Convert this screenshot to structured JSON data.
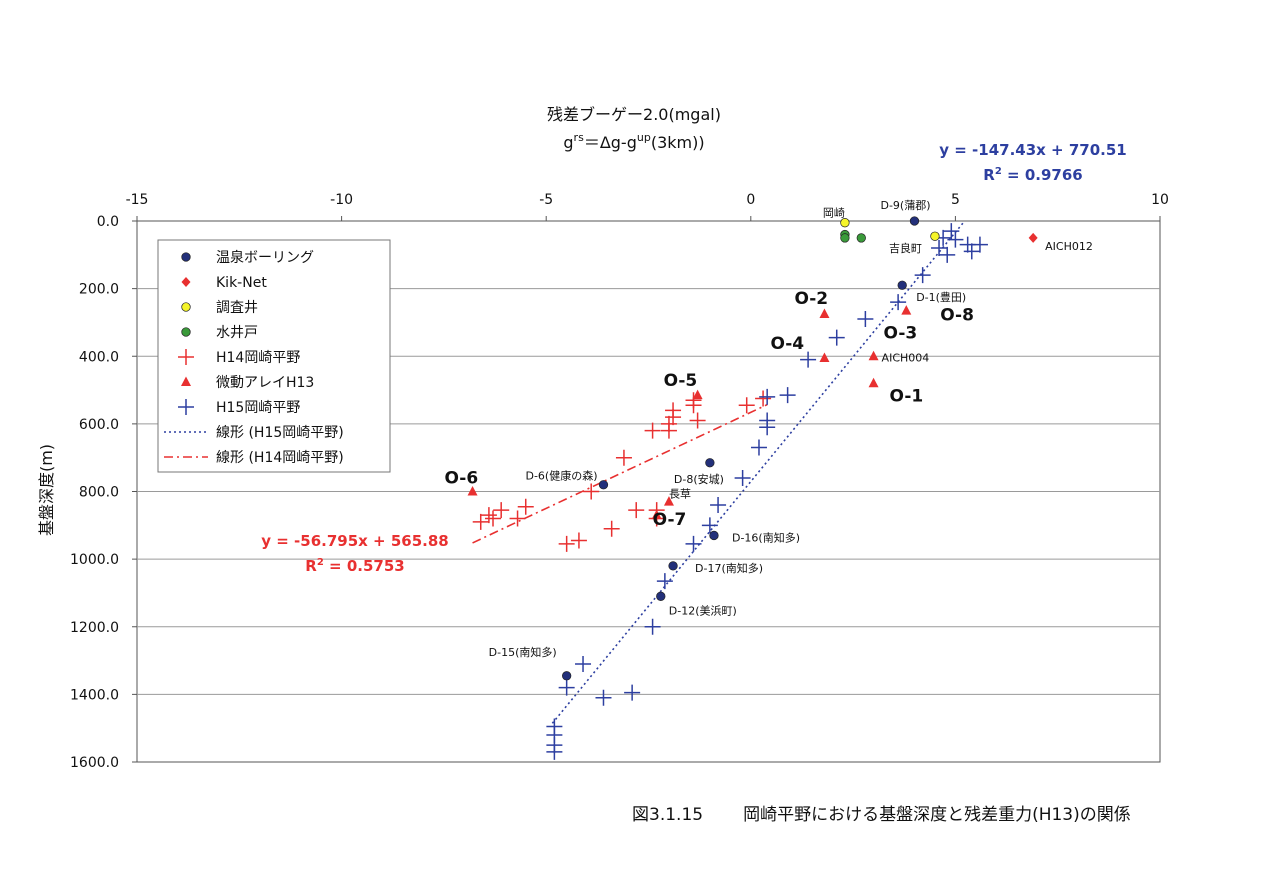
{
  "chart_data": {
    "type": "scatter",
    "title_line1": "残差ブーゲー2.0(mgal)",
    "title_line2_prefix": "g",
    "title_line2_sup1": "rs",
    "title_line2_mid": "＝Δg-g",
    "title_line2_sup2": "up",
    "title_line2_suffix": "(3km))",
    "ylabel": "基盤深度(m)",
    "xlim": [
      -15,
      10
    ],
    "ylim": [
      1600,
      0
    ],
    "y_inverted": true,
    "x_axis_position": "top",
    "grid": "horizontal",
    "x_ticks": [
      "-15",
      "-10",
      "-5",
      "0",
      "5",
      "10"
    ],
    "y_ticks": [
      "0.0",
      "200.0",
      "400.0",
      "600.0",
      "800.0",
      "1000.0",
      "1200.0",
      "1400.0",
      "1600.0"
    ],
    "legend": {
      "placement": "upper-left",
      "entries": [
        {
          "label": "温泉ボーリング",
          "marker": "circle",
          "color": "#23307a"
        },
        {
          "label": "Kik-Net",
          "marker": "diamond",
          "color": "#e83030"
        },
        {
          "label": "調査井",
          "marker": "circle",
          "color": "#f5f52a"
        },
        {
          "label": "水井戸",
          "marker": "circle",
          "color": "#3a9a3a"
        },
        {
          "label": "H14岡崎平野",
          "marker": "plus",
          "color": "#e83030"
        },
        {
          "label": "微動アレイH13",
          "marker": "triangle",
          "color": "#e83030"
        },
        {
          "label": "H15岡崎平野",
          "marker": "plus",
          "color": "#2d3fa0"
        },
        {
          "label": "線形 (H15岡崎平野)",
          "marker": "dotted-line",
          "color": "#2d3fa0"
        },
        {
          "label": "線形 (H14岡崎平野)",
          "marker": "dashdot-line",
          "color": "#e83030"
        }
      ]
    },
    "series": [
      {
        "name": "温泉ボーリング",
        "marker": "circle",
        "color": "#23307a",
        "points": [
          [
            4.0,
            0
          ],
          [
            3.7,
            190
          ],
          [
            -1.0,
            715
          ],
          [
            -3.6,
            780
          ],
          [
            -0.9,
            930
          ],
          [
            -1.9,
            1020
          ],
          [
            -2.2,
            1110
          ],
          [
            -4.5,
            1345
          ]
        ]
      },
      {
        "name": "Kik-Net",
        "marker": "diamond",
        "color": "#e83030",
        "points": [
          [
            6.9,
            50
          ]
        ]
      },
      {
        "name": "調査井",
        "marker": "circle",
        "color": "#f5f52a",
        "points": [
          [
            2.3,
            5
          ],
          [
            4.5,
            45
          ]
        ]
      },
      {
        "name": "水井戸",
        "marker": "circle",
        "color": "#3a9a3a",
        "points": [
          [
            2.3,
            40
          ],
          [
            2.3,
            50
          ],
          [
            2.7,
            50
          ]
        ]
      },
      {
        "name": "H14岡崎平野",
        "marker": "plus",
        "color": "#e83030",
        "points": [
          [
            -1.4,
            530
          ],
          [
            -1.4,
            545
          ],
          [
            -1.9,
            560
          ],
          [
            -1.9,
            580
          ],
          [
            -1.3,
            590
          ],
          [
            -2.0,
            600
          ],
          [
            -2.0,
            620
          ],
          [
            -2.4,
            620
          ],
          [
            -0.1,
            545
          ],
          [
            0.3,
            525
          ],
          [
            -3.1,
            700
          ],
          [
            -3.9,
            800
          ],
          [
            -3.4,
            910
          ],
          [
            -4.2,
            945
          ],
          [
            -4.5,
            955
          ],
          [
            -5.5,
            845
          ],
          [
            -5.7,
            880
          ],
          [
            -6.1,
            855
          ],
          [
            -6.4,
            870
          ],
          [
            -6.6,
            890
          ],
          [
            -6.3,
            880
          ],
          [
            -2.8,
            855
          ],
          [
            -2.3,
            855
          ],
          [
            -2.3,
            880
          ]
        ]
      },
      {
        "name": "微動アレイH13",
        "marker": "triangle",
        "color": "#e83030",
        "points": [
          [
            1.8,
            275
          ],
          [
            3.8,
            265
          ],
          [
            1.8,
            405
          ],
          [
            3.0,
            400
          ],
          [
            3.0,
            480
          ],
          [
            -1.3,
            515
          ],
          [
            -6.8,
            800
          ],
          [
            -2.0,
            830
          ],
          [
            -2.3,
            870
          ]
        ]
      },
      {
        "name": "H15岡崎平野",
        "marker": "plus",
        "color": "#2d3fa0",
        "points": [
          [
            4.9,
            30
          ],
          [
            4.7,
            50
          ],
          [
            5.0,
            55
          ],
          [
            5.3,
            70
          ],
          [
            5.6,
            70
          ],
          [
            5.4,
            90
          ],
          [
            4.8,
            100
          ],
          [
            4.6,
            80
          ],
          [
            4.2,
            160
          ],
          [
            3.6,
            240
          ],
          [
            2.8,
            290
          ],
          [
            2.1,
            345
          ],
          [
            1.4,
            410
          ],
          [
            0.9,
            515
          ],
          [
            0.4,
            520
          ],
          [
            0.4,
            590
          ],
          [
            0.4,
            610
          ],
          [
            0.2,
            670
          ],
          [
            -0.2,
            760
          ],
          [
            -0.8,
            840
          ],
          [
            -1.0,
            900
          ],
          [
            -1.4,
            955
          ],
          [
            -2.1,
            1065
          ],
          [
            -2.4,
            1200
          ],
          [
            -4.1,
            1310
          ],
          [
            -4.5,
            1380
          ],
          [
            -3.6,
            1410
          ],
          [
            -2.9,
            1395
          ],
          [
            -4.8,
            1520
          ],
          [
            -4.8,
            1550
          ],
          [
            -4.8,
            1570
          ],
          [
            -4.8,
            1495
          ]
        ]
      }
    ],
    "trendlines": [
      {
        "name": "線形 (H15岡崎平野)",
        "style": "dotted",
        "color": "#2d3fa0",
        "slope": -147.43,
        "intercept": 770.51,
        "x_range": [
          -4.85,
          5.2
        ],
        "equation": "y = -147.43x + 770.51",
        "r2_prefix": "R",
        "r2_sup": "2",
        "r2_value": " = 0.9766"
      },
      {
        "name": "線形 (H14岡崎平野)",
        "style": "dashdot",
        "color": "#e83030",
        "slope": -56.795,
        "intercept": 565.88,
        "x_range": [
          -6.8,
          0.4
        ],
        "equation": "y = -56.795x + 565.88",
        "r2_prefix": "R",
        "r2_sup": "2",
        "r2_value": " = 0.5753"
      }
    ],
    "point_labels": [
      {
        "text": "D-9(蒲郡)",
        "x": 4.0,
        "y": 0,
        "size": "small"
      },
      {
        "text": "岡崎",
        "x": 2.3,
        "y": 5,
        "size": "small"
      },
      {
        "text": "吉良町",
        "x": 4.5,
        "y": 45,
        "size": "small"
      },
      {
        "text": "AICH012",
        "x": 6.9,
        "y": 50,
        "size": "small"
      },
      {
        "text": "D-1(豊田)",
        "x": 3.7,
        "y": 190,
        "size": "small"
      },
      {
        "text": "O-2",
        "x": 1.8,
        "y": 275,
        "size": "large"
      },
      {
        "text": "O-8",
        "x": 3.8,
        "y": 265,
        "size": "large"
      },
      {
        "text": "O-3",
        "x": 3.0,
        "y": 400,
        "size": "large"
      },
      {
        "text": "AICH004",
        "x": 3.0,
        "y": 400,
        "size": "small"
      },
      {
        "text": "O-4",
        "x": 1.8,
        "y": 405,
        "size": "large"
      },
      {
        "text": "O-1",
        "x": 3.0,
        "y": 480,
        "size": "large"
      },
      {
        "text": "O-5",
        "x": -1.3,
        "y": 515,
        "size": "large"
      },
      {
        "text": "D-6(健康の森)",
        "x": -3.6,
        "y": 780,
        "size": "small"
      },
      {
        "text": "O-6",
        "x": -6.8,
        "y": 800,
        "size": "large"
      },
      {
        "text": "D-8(安城)",
        "x": -1.0,
        "y": 715,
        "size": "small"
      },
      {
        "text": "長草",
        "x": -2.0,
        "y": 830,
        "size": "small"
      },
      {
        "text": "O-7",
        "x": -2.3,
        "y": 870,
        "size": "large"
      },
      {
        "text": "D-16(南知多)",
        "x": -0.9,
        "y": 930,
        "size": "small"
      },
      {
        "text": "D-17(南知多)",
        "x": -1.9,
        "y": 1020,
        "size": "small"
      },
      {
        "text": "D-12(美浜町)",
        "x": -2.2,
        "y": 1110,
        "size": "small"
      },
      {
        "text": "D-15(南知多)",
        "x": -4.5,
        "y": 1345,
        "size": "small"
      }
    ]
  },
  "caption": {
    "figure_number": "図3.1.15",
    "text": "岡崎平野における基盤深度と残差重力(H13)の関係"
  }
}
